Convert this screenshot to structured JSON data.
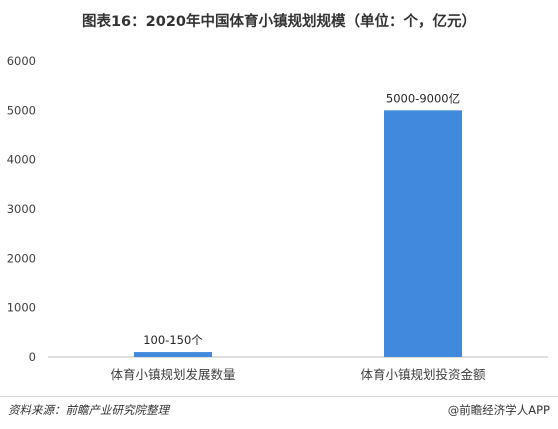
{
  "header": {
    "title": "图表16：2020年中国体育小镇规划规模（单位：个，亿元）"
  },
  "chart_data": {
    "type": "bar",
    "categories": [
      "体育小镇规划发展数量",
      "体育小镇规划投资金额"
    ],
    "values": [
      100,
      5000
    ],
    "data_labels": [
      "100-150个",
      "5000-9000亿"
    ],
    "ylim": [
      0,
      6000
    ],
    "yticks": [
      "0",
      "1000",
      "2000",
      "3000",
      "4000",
      "5000",
      "6000"
    ],
    "xlabel": "",
    "ylabel": "",
    "grid": false,
    "bar_color": "#4189DD"
  },
  "footer": {
    "source": "资料来源：前瞻产业研究院整理",
    "brand": "@前瞻经济学人APP"
  }
}
